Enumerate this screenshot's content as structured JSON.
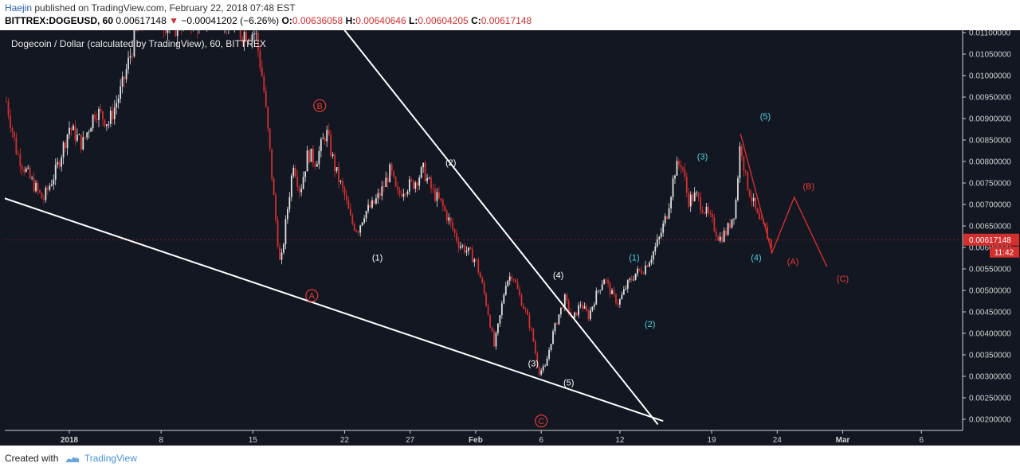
{
  "header": {
    "author": "Haejin",
    "published": "published on TradingView.com, February 22, 2018 07:48 EST",
    "symbol": "BITTREX:DOGEUSD, 60",
    "last": "0.00617148",
    "change_arrow": "▼",
    "change": "−0.00041202 (−6.26%)",
    "o_label": "O:",
    "o": "0.00636058",
    "h_label": "H:",
    "h": "0.00640646",
    "l_label": "L:",
    "l": "0.00604205",
    "c_label": "C:",
    "c": "0.00617148"
  },
  "footer": {
    "created_with": "Created with",
    "brand": "TradingView"
  },
  "chart_data": {
    "type": "candlestick",
    "title": "Dogecoin / Dollar (calculated by TradingView), 60, BITTREX",
    "price_axis": {
      "ylim": [
        0.0018,
        0.0112
      ],
      "ticks": [
        "0.00200000",
        "0.00250000",
        "0.00300000",
        "0.00350000",
        "0.00400000",
        "0.00450000",
        "0.00500000",
        "0.00550000",
        "0.00600000",
        "0.00650000",
        "0.00700000",
        "0.00750000",
        "0.00800000",
        "0.00850000",
        "0.00900000",
        "0.00950000",
        "0.01000000",
        "0.01050000",
        "0.01100000"
      ],
      "last_price_label": "0.00617148",
      "countdown_label": "11:42"
    },
    "time_axis": {
      "ticks": [
        {
          "label": "2018",
          "day": 1,
          "bold": true
        },
        {
          "label": "8",
          "day": 8
        },
        {
          "label": "15",
          "day": 15
        },
        {
          "label": "22",
          "day": 22
        },
        {
          "label": "27",
          "day": 27
        },
        {
          "label": "Feb",
          "day": 32,
          "bold": true
        },
        {
          "label": "6",
          "day": 37
        },
        {
          "label": "12",
          "day": 43
        },
        {
          "label": "19",
          "day": 50
        },
        {
          "label": "24",
          "day": 55
        },
        {
          "label": "Mar",
          "day": 60,
          "bold": true
        },
        {
          "label": "6",
          "day": 66
        }
      ]
    },
    "price_path": [
      [
        -3.8,
        0.0094
      ],
      [
        -3,
        0.0082
      ],
      [
        -2,
        0.0076
      ],
      [
        -1,
        0.0071
      ],
      [
        0,
        0.0078
      ],
      [
        1,
        0.0088
      ],
      [
        2,
        0.0084
      ],
      [
        3,
        0.0092
      ],
      [
        4,
        0.0089
      ],
      [
        5,
        0.0097
      ],
      [
        6,
        0.0109
      ],
      [
        7,
        0.0115
      ],
      [
        8,
        0.0113
      ],
      [
        9,
        0.0111
      ],
      [
        10,
        0.0114
      ],
      [
        11,
        0.0112
      ],
      [
        12,
        0.0116
      ],
      [
        13,
        0.0113
      ],
      [
        14,
        0.011
      ],
      [
        15.2,
        0.011
      ],
      [
        15.8,
        0.0098
      ],
      [
        16.3,
        0.0082
      ],
      [
        16.7,
        0.0068
      ],
      [
        17.1,
        0.0055
      ],
      [
        17.6,
        0.0068
      ],
      [
        18.1,
        0.008
      ],
      [
        18.6,
        0.0073
      ],
      [
        19.2,
        0.0082
      ],
      [
        19.8,
        0.008
      ],
      [
        20.6,
        0.0087
      ],
      [
        21.3,
        0.0078
      ],
      [
        22,
        0.0072
      ],
      [
        22.5,
        0.0066
      ],
      [
        23,
        0.0064
      ],
      [
        23.5,
        0.0068
      ],
      [
        24.2,
        0.007
      ],
      [
        24.8,
        0.0073
      ],
      [
        25.5,
        0.0078
      ],
      [
        26,
        0.0072
      ],
      [
        26.6,
        0.0074
      ],
      [
        27.3,
        0.0075
      ],
      [
        28,
        0.0078
      ],
      [
        28.7,
        0.0073
      ],
      [
        29.4,
        0.007
      ],
      [
        30,
        0.0066
      ],
      [
        30.7,
        0.0061
      ],
      [
        31.4,
        0.0059
      ],
      [
        32,
        0.0057
      ],
      [
        32.6,
        0.005
      ],
      [
        33,
        0.0044
      ],
      [
        33.4,
        0.0037
      ],
      [
        33.8,
        0.0043
      ],
      [
        34.3,
        0.0052
      ],
      [
        34.8,
        0.0054
      ],
      [
        35.3,
        0.0049
      ],
      [
        35.8,
        0.0045
      ],
      [
        36.3,
        0.004
      ],
      [
        36.8,
        0.0031
      ],
      [
        37.3,
        0.0032
      ],
      [
        37.8,
        0.0039
      ],
      [
        38.3,
        0.0044
      ],
      [
        38.8,
        0.0048
      ],
      [
        39.4,
        0.0043
      ],
      [
        40,
        0.0047
      ],
      [
        40.6,
        0.0044
      ],
      [
        41.2,
        0.0049
      ],
      [
        41.8,
        0.0053
      ],
      [
        42.4,
        0.0049
      ],
      [
        42.9,
        0.0047
      ],
      [
        43.5,
        0.0051
      ],
      [
        44.2,
        0.0054
      ],
      [
        44.8,
        0.0055
      ],
      [
        45.4,
        0.0058
      ],
      [
        46,
        0.0062
      ],
      [
        46.6,
        0.0068
      ],
      [
        47.2,
        0.0078
      ],
      [
        47.7,
        0.008
      ],
      [
        48.2,
        0.0071
      ],
      [
        48.8,
        0.0072
      ],
      [
        49.4,
        0.0069
      ],
      [
        50,
        0.0066
      ],
      [
        50.6,
        0.0062
      ],
      [
        51.2,
        0.0064
      ],
      [
        51.8,
        0.0069
      ],
      [
        52.2,
        0.0085
      ],
      [
        52.6,
        0.0076
      ],
      [
        53.1,
        0.0071
      ],
      [
        53.6,
        0.0066
      ],
      [
        54.1,
        0.0064
      ],
      [
        54.6,
        0.006
      ]
    ],
    "trendlines": [
      {
        "name": "upper-trendline",
        "color": "#ffffff",
        "from": [
          18.5,
          0.0124
        ],
        "to": [
          45.9,
          0.00188
        ]
      },
      {
        "name": "lower-trendline",
        "color": "#ffffff",
        "from": [
          -4,
          0.00715
        ],
        "to": [
          46.3,
          0.00196
        ]
      }
    ],
    "projection": {
      "color": "#d32f2f",
      "points": [
        [
          52.2,
          0.00865
        ],
        [
          54.6,
          0.00588
        ],
        [
          56.3,
          0.00717
        ],
        [
          58.8,
          0.00555
        ]
      ]
    },
    "wave_labels": [
      {
        "text": "B",
        "day": 20.1,
        "price": 0.0093,
        "color": "#e53935",
        "circled": true
      },
      {
        "text": "A",
        "day": 19.5,
        "price": 0.00488,
        "color": "#e53935",
        "circled": true
      },
      {
        "text": "C",
        "day": 37,
        "price": 0.00196,
        "color": "#e53935",
        "circled": true
      },
      {
        "text": "(1)",
        "day": 24.5,
        "price": 0.00577,
        "color": "#ffffff"
      },
      {
        "text": "(2)",
        "day": 30.1,
        "price": 0.00798,
        "color": "#ffffff"
      },
      {
        "text": "(3)",
        "day": 36.4,
        "price": 0.00331,
        "color": "#ffffff"
      },
      {
        "text": "(4)",
        "day": 38.3,
        "price": 0.00536,
        "color": "#ffffff"
      },
      {
        "text": "(5)",
        "day": 39.1,
        "price": 0.00286,
        "color": "#ffffff"
      },
      {
        "text": "(1)",
        "day": 44.1,
        "price": 0.00577,
        "color": "#4dd0e1"
      },
      {
        "text": "(2)",
        "day": 45.3,
        "price": 0.00422,
        "color": "#4dd0e1"
      },
      {
        "text": "(3)",
        "day": 49.3,
        "price": 0.00812,
        "color": "#4dd0e1"
      },
      {
        "text": "(4)",
        "day": 53.4,
        "price": 0.00577,
        "color": "#4dd0e1"
      },
      {
        "text": "(5)",
        "day": 54.1,
        "price": 0.00906,
        "color": "#4dd0e1"
      },
      {
        "text": "(A)",
        "day": 56.2,
        "price": 0.00568,
        "color": "#e53935"
      },
      {
        "text": "(B)",
        "day": 57.4,
        "price": 0.00743,
        "color": "#e53935"
      },
      {
        "text": "(C)",
        "day": 60,
        "price": 0.00528,
        "color": "#e53935"
      }
    ],
    "colors": {
      "background": "#131722",
      "up": "#e0e0e0",
      "down": "#d32f2f",
      "axis_text": "#d0d0d0"
    }
  }
}
